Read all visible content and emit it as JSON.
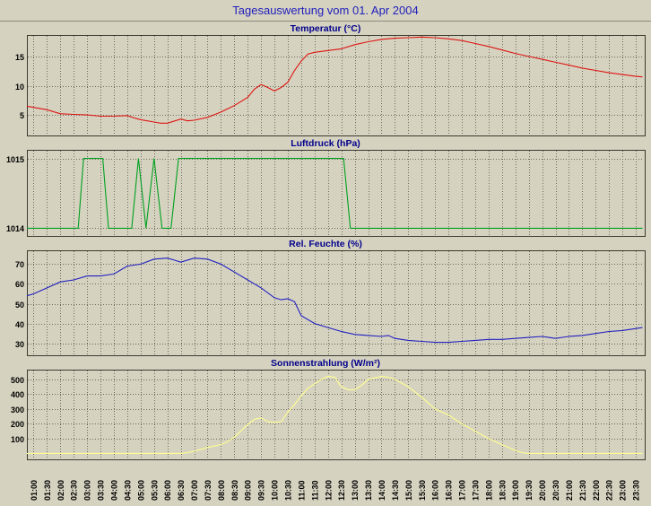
{
  "title": "Tagesauswertung vom 01. Apr 2004",
  "x_axis": {
    "min": 45,
    "max": 1430,
    "first_tick_minute": 60,
    "step_minutes": 30,
    "labels": [
      "01:00",
      "01:30",
      "02:00",
      "02:30",
      "03:00",
      "03:30",
      "04:00",
      "04:30",
      "05:00",
      "05:30",
      "06:00",
      "06:30",
      "07:00",
      "07:30",
      "08:00",
      "08:30",
      "09:00",
      "09:30",
      "10:00",
      "10:30",
      "11:00",
      "11:30",
      "12:00",
      "12:30",
      "13:00",
      "13:30",
      "14:00",
      "14:30",
      "15:00",
      "15:30",
      "16:00",
      "16:30",
      "17:00",
      "17:30",
      "18:00",
      "18:30",
      "19:00",
      "19:30",
      "20:00",
      "20:30",
      "21:00",
      "21:30",
      "22:00",
      "22:30",
      "23:00",
      "23:30"
    ]
  },
  "chart_data": [
    {
      "type": "line",
      "title": "Temperatur (°C)",
      "color": "#dd1511",
      "ylim": [
        1.5,
        18.5
      ],
      "yticks": [
        5,
        10,
        15
      ],
      "x_unit": "minutes_of_day",
      "points": [
        [
          45,
          6.5
        ],
        [
          60,
          6.3
        ],
        [
          90,
          5.9
        ],
        [
          120,
          5.2
        ],
        [
          150,
          5.1
        ],
        [
          180,
          5.0
        ],
        [
          210,
          4.8
        ],
        [
          240,
          4.8
        ],
        [
          270,
          4.9
        ],
        [
          285,
          4.5
        ],
        [
          300,
          4.2
        ],
        [
          330,
          3.8
        ],
        [
          345,
          3.6
        ],
        [
          360,
          3.6
        ],
        [
          390,
          4.3
        ],
        [
          405,
          4.0
        ],
        [
          420,
          4.1
        ],
        [
          450,
          4.6
        ],
        [
          480,
          5.5
        ],
        [
          510,
          6.6
        ],
        [
          540,
          8.0
        ],
        [
          555,
          9.4
        ],
        [
          570,
          10.2
        ],
        [
          585,
          9.7
        ],
        [
          600,
          9.1
        ],
        [
          615,
          9.7
        ],
        [
          630,
          10.6
        ],
        [
          645,
          12.6
        ],
        [
          660,
          14.2
        ],
        [
          675,
          15.4
        ],
        [
          690,
          15.7
        ],
        [
          720,
          16.0
        ],
        [
          750,
          16.3
        ],
        [
          780,
          17.0
        ],
        [
          810,
          17.5
        ],
        [
          840,
          17.9
        ],
        [
          870,
          18.1
        ],
        [
          900,
          18.2
        ],
        [
          930,
          18.3
        ],
        [
          960,
          18.2
        ],
        [
          990,
          18.0
        ],
        [
          1020,
          17.7
        ],
        [
          1050,
          17.2
        ],
        [
          1080,
          16.7
        ],
        [
          1110,
          16.1
        ],
        [
          1140,
          15.5
        ],
        [
          1170,
          15.0
        ],
        [
          1200,
          14.5
        ],
        [
          1230,
          14.0
        ],
        [
          1260,
          13.5
        ],
        [
          1290,
          13.0
        ],
        [
          1320,
          12.6
        ],
        [
          1350,
          12.2
        ],
        [
          1380,
          11.9
        ],
        [
          1410,
          11.6
        ],
        [
          1425,
          11.5
        ]
      ]
    },
    {
      "type": "line",
      "title": "Luftdruck (hPa)",
      "color": "#00a020",
      "ylim": [
        1013.89,
        1015.11
      ],
      "yticks": [
        1014,
        1015
      ],
      "x_unit": "minutes_of_day",
      "points": [
        [
          45,
          1014
        ],
        [
          160,
          1014
        ],
        [
          172,
          1015
        ],
        [
          215,
          1015
        ],
        [
          228,
          1014
        ],
        [
          280,
          1014
        ],
        [
          295,
          1015
        ],
        [
          312,
          1014
        ],
        [
          330,
          1015
        ],
        [
          348,
          1014
        ],
        [
          368,
          1014
        ],
        [
          385,
          1015
        ],
        [
          755,
          1015
        ],
        [
          770,
          1014
        ],
        [
          1425,
          1014
        ]
      ]
    },
    {
      "type": "line",
      "title": "Rel. Feuchte (%)",
      "color": "#2020c0",
      "ylim": [
        24,
        76.5
      ],
      "yticks": [
        30,
        40,
        50,
        60,
        70
      ],
      "x_unit": "minutes_of_day",
      "points": [
        [
          45,
          54
        ],
        [
          60,
          55
        ],
        [
          90,
          58
        ],
        [
          120,
          61
        ],
        [
          150,
          62
        ],
        [
          180,
          64
        ],
        [
          210,
          64
        ],
        [
          240,
          65
        ],
        [
          270,
          69
        ],
        [
          300,
          70
        ],
        [
          330,
          72.5
        ],
        [
          360,
          73
        ],
        [
          375,
          72
        ],
        [
          390,
          71
        ],
        [
          420,
          73
        ],
        [
          450,
          72.5
        ],
        [
          480,
          70
        ],
        [
          510,
          66
        ],
        [
          540,
          62
        ],
        [
          570,
          58
        ],
        [
          600,
          53
        ],
        [
          615,
          52
        ],
        [
          630,
          52.5
        ],
        [
          645,
          51
        ],
        [
          660,
          44
        ],
        [
          690,
          40
        ],
        [
          720,
          38
        ],
        [
          750,
          36
        ],
        [
          780,
          34.5
        ],
        [
          810,
          34
        ],
        [
          840,
          33.5
        ],
        [
          855,
          34
        ],
        [
          870,
          32.5
        ],
        [
          900,
          31.5
        ],
        [
          930,
          31
        ],
        [
          960,
          30.5
        ],
        [
          990,
          30.5
        ],
        [
          1020,
          31
        ],
        [
          1050,
          31.5
        ],
        [
          1080,
          32
        ],
        [
          1110,
          32
        ],
        [
          1140,
          32.5
        ],
        [
          1170,
          33
        ],
        [
          1200,
          33.5
        ],
        [
          1215,
          33
        ],
        [
          1230,
          32.5
        ],
        [
          1260,
          33.5
        ],
        [
          1290,
          34
        ],
        [
          1320,
          35
        ],
        [
          1350,
          36
        ],
        [
          1380,
          36.5
        ],
        [
          1410,
          37.5
        ],
        [
          1425,
          38
        ]
      ]
    },
    {
      "type": "line",
      "title": "Sonnenstrahlung (W/m²)",
      "color": "#ffff90",
      "ylim": [
        -40,
        560
      ],
      "yticks": [
        100,
        200,
        300,
        400,
        500
      ],
      "x_unit": "minutes_of_day",
      "points": [
        [
          45,
          0
        ],
        [
          390,
          0
        ],
        [
          405,
          5
        ],
        [
          420,
          15
        ],
        [
          450,
          40
        ],
        [
          480,
          60
        ],
        [
          495,
          80
        ],
        [
          510,
          110
        ],
        [
          540,
          195
        ],
        [
          555,
          230
        ],
        [
          570,
          240
        ],
        [
          585,
          215
        ],
        [
          600,
          210
        ],
        [
          615,
          215
        ],
        [
          630,
          280
        ],
        [
          645,
          330
        ],
        [
          660,
          390
        ],
        [
          675,
          440
        ],
        [
          690,
          470
        ],
        [
          705,
          500
        ],
        [
          720,
          520
        ],
        [
          735,
          515
        ],
        [
          750,
          450
        ],
        [
          765,
          430
        ],
        [
          780,
          430
        ],
        [
          795,
          460
        ],
        [
          810,
          500
        ],
        [
          840,
          520
        ],
        [
          855,
          515
        ],
        [
          870,
          500
        ],
        [
          900,
          450
        ],
        [
          930,
          380
        ],
        [
          960,
          300
        ],
        [
          990,
          260
        ],
        [
          1005,
          230
        ],
        [
          1020,
          200
        ],
        [
          1050,
          150
        ],
        [
          1080,
          100
        ],
        [
          1110,
          60
        ],
        [
          1140,
          20
        ],
        [
          1155,
          5
        ],
        [
          1170,
          0
        ],
        [
          1425,
          0
        ]
      ]
    }
  ]
}
